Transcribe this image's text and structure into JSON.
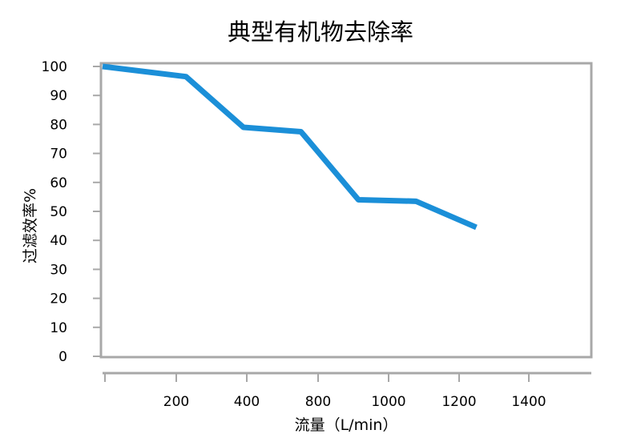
{
  "chart_data": {
    "type": "line",
    "title": "典型有机物去除率",
    "xlabel": "流量（L/min）",
    "ylabel": "过滤效率%",
    "xlim": [
      0,
      1700
    ],
    "ylim": [
      0,
      100
    ],
    "x_ticks": [
      200,
      400,
      800,
      1000,
      1200,
      1400
    ],
    "y_ticks": [
      0,
      10,
      20,
      30,
      40,
      50,
      60,
      70,
      80,
      90,
      100
    ],
    "grid": false,
    "line_color": "#1b8fd8",
    "series": [
      {
        "x": [
          0,
          290,
          490,
          690,
          890,
          1090,
          1300
        ],
        "values": [
          100,
          96.5,
          79,
          77.5,
          54,
          53.5,
          44.5
        ]
      }
    ]
  }
}
